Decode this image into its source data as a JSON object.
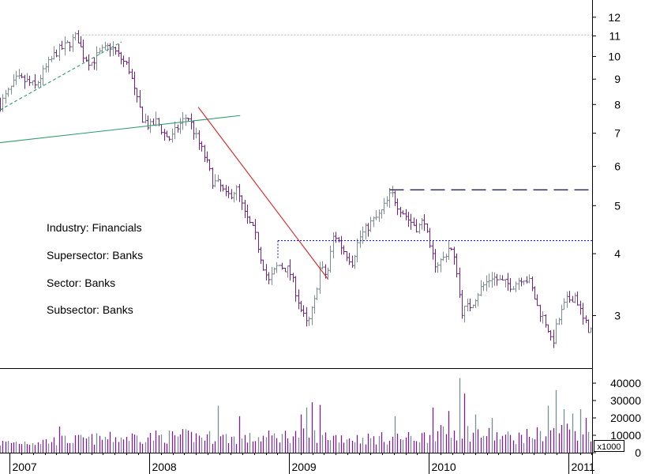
{
  "chart_data": {
    "type": "ohlc-bar",
    "price_scale": "log",
    "price_axis": {
      "ticks": [
        3,
        4,
        5,
        6,
        7,
        8,
        9,
        10,
        11,
        12
      ],
      "labels": [
        "3",
        "4",
        "5",
        "6",
        "7",
        "8",
        "9",
        "10",
        "11",
        "12"
      ],
      "range": [
        2.35,
        13
      ]
    },
    "volume_axis": {
      "ticks": [
        0,
        10000,
        20000,
        30000,
        40000
      ],
      "labels": [
        "0",
        "10000",
        "20000",
        "30000",
        "40000"
      ],
      "unit_label": "x1000",
      "range": [
        0,
        45000
      ]
    },
    "x_axis": {
      "start": 2006.93,
      "end": 2011.17,
      "year_ticks": [
        2007,
        2008,
        2009,
        2010,
        2011
      ],
      "labels": [
        "2007",
        "2008",
        "2009",
        "2010",
        "2011"
      ]
    },
    "price_anchors": [
      [
        2006.93,
        8.0
      ],
      [
        2006.98,
        8.4
      ],
      [
        2007.05,
        9.0
      ],
      [
        2007.12,
        8.9
      ],
      [
        2007.18,
        8.7
      ],
      [
        2007.25,
        9.4
      ],
      [
        2007.33,
        10.2
      ],
      [
        2007.42,
        10.6
      ],
      [
        2007.48,
        11.0
      ],
      [
        2007.52,
        10.1
      ],
      [
        2007.58,
        9.7
      ],
      [
        2007.65,
        10.2
      ],
      [
        2007.72,
        10.5
      ],
      [
        2007.78,
        10.0
      ],
      [
        2007.85,
        9.5
      ],
      [
        2007.9,
        8.3
      ],
      [
        2007.95,
        7.5
      ],
      [
        2008.0,
        7.2
      ],
      [
        2008.05,
        7.4
      ],
      [
        2008.1,
        7.0
      ],
      [
        2008.15,
        6.8
      ],
      [
        2008.2,
        7.2
      ],
      [
        2008.27,
        7.6
      ],
      [
        2008.33,
        6.9
      ],
      [
        2008.4,
        6.2
      ],
      [
        2008.45,
        5.6
      ],
      [
        2008.5,
        5.5
      ],
      [
        2008.55,
        5.2
      ],
      [
        2008.62,
        5.4
      ],
      [
        2008.68,
        4.8
      ],
      [
        2008.75,
        4.4
      ],
      [
        2008.8,
        3.9
      ],
      [
        2008.85,
        3.5
      ],
      [
        2008.92,
        3.8
      ],
      [
        2009.0,
        3.7
      ],
      [
        2009.08,
        3.1
      ],
      [
        2009.13,
        2.85
      ],
      [
        2009.18,
        3.2
      ],
      [
        2009.22,
        3.75
      ],
      [
        2009.27,
        3.6
      ],
      [
        2009.32,
        4.4
      ],
      [
        2009.38,
        4.1
      ],
      [
        2009.45,
        3.85
      ],
      [
        2009.5,
        4.3
      ],
      [
        2009.58,
        4.6
      ],
      [
        2009.65,
        4.8
      ],
      [
        2009.7,
        5.1
      ],
      [
        2009.73,
        5.3
      ],
      [
        2009.78,
        5.0
      ],
      [
        2009.85,
        4.7
      ],
      [
        2009.92,
        4.5
      ],
      [
        2009.97,
        4.7
      ],
      [
        2010.0,
        4.1
      ],
      [
        2010.05,
        3.8
      ],
      [
        2010.1,
        3.9
      ],
      [
        2010.15,
        4.15
      ],
      [
        2010.2,
        3.7
      ],
      [
        2010.23,
        3.05
      ],
      [
        2010.3,
        3.15
      ],
      [
        2010.37,
        3.4
      ],
      [
        2010.45,
        3.6
      ],
      [
        2010.52,
        3.5
      ],
      [
        2010.6,
        3.45
      ],
      [
        2010.67,
        3.6
      ],
      [
        2010.72,
        3.5
      ],
      [
        2010.78,
        3.1
      ],
      [
        2010.85,
        2.85
      ],
      [
        2010.88,
        2.6
      ],
      [
        2010.92,
        2.9
      ],
      [
        2010.98,
        3.2
      ],
      [
        2011.05,
        3.3
      ],
      [
        2011.1,
        2.95
      ],
      [
        2011.15,
        2.8
      ]
    ],
    "volume_anchors": [
      [
        2006.93,
        5500
      ],
      [
        2007.5,
        7500
      ],
      [
        2007.9,
        9000
      ],
      [
        2008.3,
        9500
      ],
      [
        2008.7,
        8000
      ],
      [
        2009.1,
        10500
      ],
      [
        2009.5,
        8000
      ],
      [
        2009.9,
        8500
      ],
      [
        2010.2,
        12500
      ],
      [
        2010.6,
        8500
      ],
      [
        2011.0,
        13000
      ],
      [
        2011.15,
        11000
      ]
    ],
    "volume_spikes": [
      [
        2007.35,
        15000
      ],
      [
        2008.48,
        27000
      ],
      [
        2008.65,
        21000
      ],
      [
        2009.08,
        22000
      ],
      [
        2009.12,
        26000
      ],
      [
        2009.16,
        29000
      ],
      [
        2009.22,
        27500
      ],
      [
        2009.75,
        21000
      ],
      [
        2010.03,
        26000
      ],
      [
        2010.14,
        24000
      ],
      [
        2010.22,
        43000
      ],
      [
        2010.25,
        34000
      ],
      [
        2010.33,
        22000
      ],
      [
        2010.45,
        20000
      ],
      [
        2010.86,
        27000
      ],
      [
        2010.92,
        36000
      ],
      [
        2010.96,
        25000
      ],
      [
        2011.02,
        22500
      ],
      [
        2011.08,
        25000
      ],
      [
        2011.12,
        20000
      ]
    ],
    "trendlines": [
      {
        "style": "dashed",
        "color": "#2e9a6a",
        "points": [
          [
            2006.93,
            7.8
          ],
          [
            2007.8,
            10.7
          ]
        ]
      },
      {
        "style": "solid",
        "color": "#2e9a6a",
        "points": [
          [
            2006.93,
            6.7
          ],
          [
            2008.65,
            7.6
          ]
        ]
      },
      {
        "style": "solid",
        "color": "#dd2020",
        "points": [
          [
            2008.35,
            7.9
          ],
          [
            2009.28,
            3.55
          ]
        ]
      },
      {
        "style": "dotted",
        "color": "#bbbbbb",
        "points": [
          [
            2007.52,
            11.05
          ],
          [
            2011.17,
            11.05
          ]
        ]
      },
      {
        "style": "long-dash",
        "color": "#22226a",
        "points": [
          [
            2009.72,
            5.38
          ],
          [
            2011.17,
            5.38
          ]
        ]
      },
      {
        "style": "dotted",
        "color": "#2222cc",
        "points": [
          [
            2008.92,
            4.25
          ],
          [
            2011.17,
            4.25
          ]
        ]
      },
      {
        "style": "dotted",
        "color": "#2222cc",
        "points": [
          [
            2008.92,
            4.25
          ],
          [
            2008.92,
            3.9
          ]
        ]
      }
    ],
    "colors": {
      "up_bar": "#7b8f93",
      "down_bar": "#7a1f8a",
      "axis": "#000000"
    }
  },
  "annotations": [
    {
      "text": "Industry: Financials"
    },
    {
      "text": "Supersector: Banks"
    },
    {
      "text": "Sector: Banks"
    },
    {
      "text": "Subsector: Banks"
    }
  ]
}
